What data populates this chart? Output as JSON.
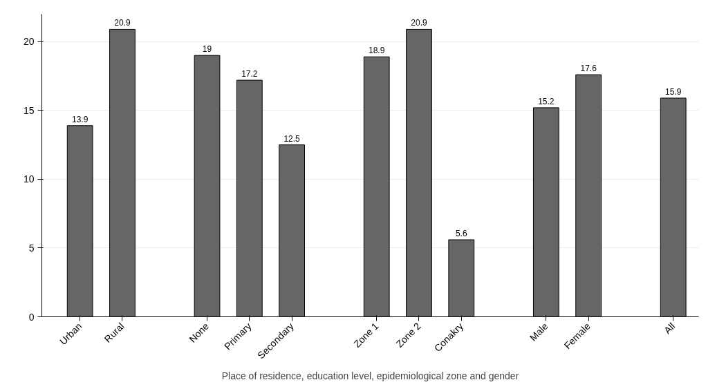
{
  "chart_data": {
    "type": "bar",
    "xlabel": "Place of residence, education level, epidemiological zone and gender",
    "categories": [
      "Urban",
      "Rural",
      null,
      "None",
      "Primary",
      "Secondary",
      null,
      "Zone 1",
      "Zone 2",
      "Conakry",
      null,
      "Male",
      "Female",
      null,
      "All"
    ],
    "values": [
      13.9,
      20.9,
      null,
      19,
      17.2,
      12.5,
      null,
      18.9,
      20.9,
      5.6,
      null,
      15.2,
      17.6,
      null,
      15.9
    ],
    "color": "#666666",
    "ylim": [
      0,
      22
    ],
    "yticks": [
      0,
      5,
      10,
      15,
      20
    ],
    "grid": "y",
    "data_labels": true
  }
}
